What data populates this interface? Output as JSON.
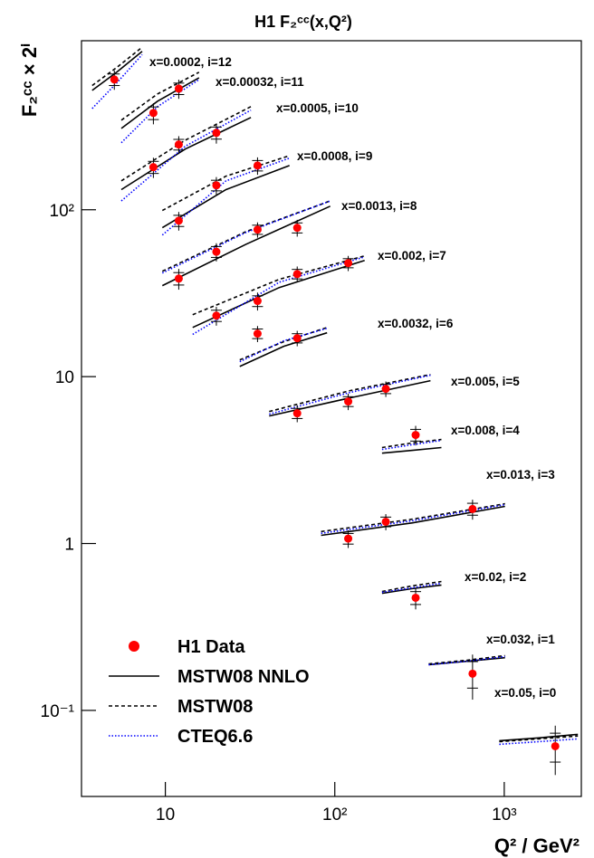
{
  "chart_data": {
    "type": "scatter",
    "title": "H1 F₂ᶜᶜ(x,Q²)",
    "x_label": "Q² / GeV²",
    "y_label": "F₂ᶜᶜ × 2ⁱ",
    "xscale": "log",
    "yscale": "log",
    "xlim": [
      3.2,
      2850
    ],
    "ylim": [
      0.0305,
      1030
    ],
    "xticks": [
      10,
      {
        "value": 100,
        "label": "10²"
      },
      {
        "value": 1000,
        "label": "10³"
      }
    ],
    "yticks": [
      {
        "value": 0.1,
        "label": "10⁻¹"
      },
      1,
      10,
      {
        "value": 100,
        "label": "10²"
      }
    ],
    "annotations": [
      "x=0.0002, i=12",
      "x=0.00032, i=11",
      "x=0.0005, i=10",
      "x=0.0008, i=9",
      "x=0.0013, i=8",
      "x=0.002, i=7",
      "x=0.0032, i=6",
      "x=0.005, i=5",
      "x=0.008, i=4",
      "x=0.013, i=3",
      "x=0.02, i=2",
      "x=0.032, i=1",
      "x=0.05, i=0"
    ],
    "legend": "lower left",
    "series": [
      {
        "name": "H1 Data",
        "type": "scatter",
        "color": "#ff0000",
        "x": [
          5,
          8.5,
          12,
          8.5,
          12,
          20,
          12,
          20,
          35,
          12,
          20,
          35,
          60,
          20,
          35,
          60,
          120,
          35,
          60,
          60,
          120,
          200,
          300,
          120,
          200,
          650,
          300,
          650,
          2000
        ],
        "values": [
          603,
          380,
          532,
          180,
          246,
          289,
          86,
          140,
          184,
          38.7,
          56,
          76,
          78,
          23.2,
          28.4,
          41.2,
          47.9,
          18.1,
          17.0,
          6.03,
          7.1,
          8.45,
          4.47,
          1.07,
          1.35,
          1.61,
          0.473,
          0.166,
          0.061
        ],
        "errors": [
          80,
          55,
          70,
          25,
          30,
          40,
          11,
          17,
          22,
          5.5,
          7,
          8,
          9,
          3,
          3.5,
          4.5,
          5,
          2,
          1.8,
          0.7,
          0.8,
          0.9,
          0.6,
          0.13,
          0.15,
          0.22,
          0.07,
          0.05,
          0.02
        ]
      },
      {
        "name": "MSTW08 NNLO",
        "type": "line",
        "color": "#000000",
        "dash": "solid",
        "x": [
          3.7,
          5.2,
          7.3,
          null,
          5.5,
          9,
          15.8,
          null,
          5.5,
          13.1,
          32,
          null,
          9.6,
          22.8,
          54,
          null,
          9.6,
          30,
          94,
          null,
          14.5,
          47,
          150,
          null,
          27.5,
          50,
          90,
          null,
          41,
          123,
          367,
          null,
          190,
          283,
          426,
          null,
          83,
          288,
          1010,
          null,
          190,
          283,
          426,
          null,
          358,
          607,
          1010,
          null,
          935,
          1590,
          2720
        ],
        "values": [
          519,
          671,
          889,
          null,
          307,
          447,
          618,
          null,
          132,
          231,
          357,
          null,
          78,
          132,
          184,
          null,
          35.1,
          62.2,
          105,
          null,
          19.7,
          34.2,
          49.7,
          null,
          11.5,
          15.2,
          18.3,
          null,
          5.81,
          7.46,
          9.46,
          null,
          3.48,
          3.61,
          3.76,
          null,
          1.12,
          1.33,
          1.67,
          null,
          0.503,
          0.536,
          0.564,
          null,
          0.188,
          0.197,
          0.207,
          null,
          0.0658,
          0.0684,
          0.0718
        ]
      },
      {
        "name": "MSTW08",
        "type": "line",
        "color": "#000000",
        "dash": "dashed",
        "x": [
          3.7,
          5.2,
          7.3,
          null,
          5.5,
          9,
          15.8,
          null,
          5.5,
          13.1,
          32,
          null,
          9.6,
          22.8,
          54,
          null,
          9.6,
          30,
          94,
          null,
          14.5,
          47,
          150,
          null,
          27.5,
          50,
          90,
          null,
          41,
          123,
          367,
          null,
          190,
          283,
          426,
          null,
          83,
          288,
          1010,
          null,
          190,
          283,
          426,
          null,
          358,
          607,
          1010,
          null,
          935,
          1590,
          2720
        ],
        "values": [
          555,
          716,
          941,
          null,
          344,
          494,
          667,
          null,
          149,
          261,
          415,
          null,
          99,
          159,
          211,
          null,
          42.8,
          74.1,
          113,
          null,
          23.5,
          38.3,
          52.9,
          null,
          12.6,
          16.2,
          19.7,
          null,
          6.18,
          8.24,
          10.3,
          null,
          3.76,
          4.0,
          4.2,
          null,
          1.18,
          1.4,
          1.73,
          null,
          0.516,
          0.556,
          0.592,
          null,
          0.19,
          0.2,
          0.213,
          null,
          0.0649,
          0.0675,
          0.0702
        ]
      },
      {
        "name": "CTEQ6.6",
        "type": "line",
        "color": "#0000ff",
        "dash": "dotted",
        "x": [
          3.7,
          5.2,
          7.3,
          null,
          5.5,
          9,
          15.8,
          null,
          5.5,
          13.1,
          32,
          null,
          9.6,
          22.8,
          54,
          null,
          9.6,
          30,
          94,
          null,
          14.5,
          47,
          150,
          null,
          27.5,
          50,
          90,
          null,
          41,
          123,
          367,
          null,
          190,
          283,
          426,
          null,
          83,
          288,
          1010,
          null,
          190,
          283,
          426,
          null,
          358,
          607,
          1010,
          null,
          935,
          1590,
          2720
        ],
        "values": [
          404,
          580,
          850,
          null,
          252,
          415,
          603,
          null,
          113,
          240,
          395,
          null,
          70.5,
          149,
          204,
          null,
          41.8,
          73.2,
          113,
          null,
          17.9,
          36.8,
          52.2,
          null,
          12.3,
          16.4,
          19.5,
          null,
          5.96,
          8.04,
          10.2,
          null,
          3.66,
          3.9,
          4.15,
          null,
          1.15,
          1.37,
          1.71,
          null,
          0.51,
          0.542,
          0.578,
          null,
          0.188,
          0.197,
          0.21,
          null,
          0.0626,
          0.0649,
          0.0675
        ]
      }
    ]
  }
}
